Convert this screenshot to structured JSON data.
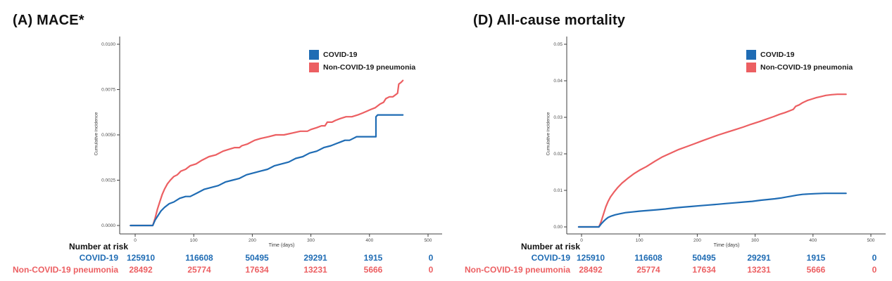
{
  "colors": {
    "covid": "#1f6cb4",
    "noncovid": "#ec5f62",
    "axis": "#3f3f3f",
    "tick_text": "#4a4a4a"
  },
  "legend": {
    "items": [
      {
        "id": "covid",
        "label": "COVID-19"
      },
      {
        "id": "noncovid",
        "label": "Non-COVID-19 pneumonia"
      }
    ]
  },
  "chart_data": [
    {
      "type": "line",
      "title": "(A) MACE*",
      "xlabel": "Time (days)",
      "ylabel": "Cumulative incidence",
      "xlim": [
        -26,
        530
      ],
      "ylim": [
        0,
        0.0105
      ],
      "grid": false,
      "legend_position": "top-right",
      "xticks": {
        "values": [
          0,
          100,
          200,
          300,
          400,
          500
        ],
        "labels": [
          "0",
          "100",
          "200",
          "300",
          "400",
          "500"
        ]
      },
      "yticks": {
        "values": [
          0.01,
          0.0075,
          0.005,
          0.0025,
          0.0
        ],
        "labels": [
          "0.0100",
          "0.0075",
          "0.0050",
          "0.0025",
          "0.0000"
        ]
      },
      "series": [
        {
          "name": "Non-COVID-19 pneumonia",
          "color_id": "noncovid",
          "points": [
            [
              -8,
              0
            ],
            [
              30,
              0
            ],
            [
              34,
              0.0004
            ],
            [
              38,
              0.0009
            ],
            [
              42,
              0.0013
            ],
            [
              46,
              0.0017
            ],
            [
              50,
              0.002
            ],
            [
              55,
              0.0023
            ],
            [
              60,
              0.0025
            ],
            [
              66,
              0.0027
            ],
            [
              72,
              0.0028
            ],
            [
              78,
              0.003
            ],
            [
              86,
              0.0031
            ],
            [
              94,
              0.0033
            ],
            [
              104,
              0.0034
            ],
            [
              114,
              0.0036
            ],
            [
              126,
              0.0038
            ],
            [
              138,
              0.0039
            ],
            [
              150,
              0.0041
            ],
            [
              160,
              0.0042
            ],
            [
              170,
              0.0043
            ],
            [
              178,
              0.0043
            ],
            [
              182,
              0.0044
            ],
            [
              192,
              0.0045
            ],
            [
              204,
              0.0047
            ],
            [
              214,
              0.0048
            ],
            [
              228,
              0.0049
            ],
            [
              240,
              0.005
            ],
            [
              254,
              0.005
            ],
            [
              268,
              0.0051
            ],
            [
              282,
              0.0052
            ],
            [
              294,
              0.0052
            ],
            [
              300,
              0.0053
            ],
            [
              310,
              0.0054
            ],
            [
              318,
              0.0055
            ],
            [
              324,
              0.0055
            ],
            [
              328,
              0.0057
            ],
            [
              336,
              0.0057
            ],
            [
              342,
              0.0058
            ],
            [
              350,
              0.0059
            ],
            [
              360,
              0.006
            ],
            [
              370,
              0.006
            ],
            [
              380,
              0.0061
            ],
            [
              388,
              0.0062
            ],
            [
              395,
              0.0063
            ],
            [
              402,
              0.0064
            ],
            [
              410,
              0.0065
            ],
            [
              418,
              0.0067
            ],
            [
              424,
              0.0068
            ],
            [
              428,
              0.007
            ],
            [
              434,
              0.0071
            ],
            [
              440,
              0.0071
            ],
            [
              444,
              0.0072
            ],
            [
              448,
              0.0073
            ],
            [
              450,
              0.0078
            ],
            [
              454,
              0.0079
            ],
            [
              457,
              0.008
            ]
          ]
        },
        {
          "name": "COVID-19",
          "color_id": "covid",
          "points": [
            [
              -8,
              0
            ],
            [
              30,
              0
            ],
            [
              34,
              0.0003
            ],
            [
              38,
              0.0005
            ],
            [
              44,
              0.0008
            ],
            [
              50,
              0.001
            ],
            [
              58,
              0.0012
            ],
            [
              66,
              0.0013
            ],
            [
              76,
              0.0015
            ],
            [
              86,
              0.0016
            ],
            [
              94,
              0.0016
            ],
            [
              106,
              0.0018
            ],
            [
              118,
              0.002
            ],
            [
              130,
              0.0021
            ],
            [
              142,
              0.0022
            ],
            [
              154,
              0.0024
            ],
            [
              166,
              0.0025
            ],
            [
              178,
              0.0026
            ],
            [
              190,
              0.0028
            ],
            [
              202,
              0.0029
            ],
            [
              214,
              0.003
            ],
            [
              226,
              0.0031
            ],
            [
              238,
              0.0033
            ],
            [
              250,
              0.0034
            ],
            [
              262,
              0.0035
            ],
            [
              274,
              0.0037
            ],
            [
              286,
              0.0038
            ],
            [
              298,
              0.004
            ],
            [
              310,
              0.0041
            ],
            [
              322,
              0.0043
            ],
            [
              334,
              0.0044
            ],
            [
              342,
              0.0045
            ],
            [
              350,
              0.0046
            ],
            [
              358,
              0.0047
            ],
            [
              366,
              0.0047
            ],
            [
              372,
              0.0048
            ],
            [
              378,
              0.0049
            ],
            [
              386,
              0.0049
            ],
            [
              411,
              0.0049
            ],
            [
              411,
              0.006
            ],
            [
              414,
              0.0061
            ],
            [
              457,
              0.0061
            ]
          ]
        }
      ]
    },
    {
      "type": "line",
      "title": "(D) All-cause mortality",
      "xlabel": "Time (days)",
      "ylabel": "Cumulative incidence",
      "xlim": [
        -26,
        530
      ],
      "ylim": [
        0,
        0.052
      ],
      "grid": false,
      "legend_position": "top-right",
      "xticks": {
        "values": [
          0,
          100,
          200,
          300,
          400,
          500
        ],
        "labels": [
          "0",
          "100",
          "200",
          "300",
          "400",
          "500"
        ]
      },
      "yticks": {
        "values": [
          0.05,
          0.04,
          0.03,
          0.02,
          0.01,
          0.0
        ],
        "labels": [
          "0.05",
          "0.04",
          "0.03",
          "0.02",
          "0.01",
          "0.00"
        ]
      },
      "series": [
        {
          "name": "Non-COVID-19 pneumonia",
          "color_id": "noncovid",
          "points": [
            [
              -5,
              0
            ],
            [
              30,
              0
            ],
            [
              34,
              0.0015
            ],
            [
              38,
              0.0035
            ],
            [
              42,
              0.0055
            ],
            [
              46,
              0.007
            ],
            [
              50,
              0.0082
            ],
            [
              56,
              0.0095
            ],
            [
              62,
              0.0107
            ],
            [
              70,
              0.012
            ],
            [
              80,
              0.0133
            ],
            [
              90,
              0.0145
            ],
            [
              100,
              0.0155
            ],
            [
              112,
              0.0165
            ],
            [
              127,
              0.018
            ],
            [
              140,
              0.0192
            ],
            [
              154,
              0.0202
            ],
            [
              168,
              0.0212
            ],
            [
              182,
              0.022
            ],
            [
              196,
              0.0228
            ],
            [
              209,
              0.0236
            ],
            [
              223,
              0.0244
            ],
            [
              237,
              0.0252
            ],
            [
              251,
              0.0259
            ],
            [
              265,
              0.0266
            ],
            [
              279,
              0.0273
            ],
            [
              293,
              0.0281
            ],
            [
              307,
              0.0288
            ],
            [
              321,
              0.0296
            ],
            [
              332,
              0.0302
            ],
            [
              342,
              0.0308
            ],
            [
              352,
              0.0313
            ],
            [
              360,
              0.0318
            ],
            [
              366,
              0.0322
            ],
            [
              370,
              0.033
            ],
            [
              376,
              0.0334
            ],
            [
              382,
              0.034
            ],
            [
              390,
              0.0346
            ],
            [
              398,
              0.035
            ],
            [
              406,
              0.0354
            ],
            [
              414,
              0.0357
            ],
            [
              422,
              0.036
            ],
            [
              432,
              0.0362
            ],
            [
              442,
              0.0363
            ],
            [
              457,
              0.0363
            ]
          ]
        },
        {
          "name": "COVID-19",
          "color_id": "covid",
          "points": [
            [
              -5,
              0
            ],
            [
              30,
              0
            ],
            [
              34,
              0.0008
            ],
            [
              38,
              0.0015
            ],
            [
              42,
              0.0021
            ],
            [
              46,
              0.0026
            ],
            [
              52,
              0.003
            ],
            [
              58,
              0.0033
            ],
            [
              66,
              0.0036
            ],
            [
              76,
              0.0039
            ],
            [
              88,
              0.0041
            ],
            [
              100,
              0.0043
            ],
            [
              115,
              0.0045
            ],
            [
              130,
              0.0047
            ],
            [
              145,
              0.0049
            ],
            [
              160,
              0.0052
            ],
            [
              175,
              0.0054
            ],
            [
              190,
              0.0056
            ],
            [
              205,
              0.0058
            ],
            [
              220,
              0.006
            ],
            [
              235,
              0.0062
            ],
            [
              250,
              0.0064
            ],
            [
              265,
              0.0066
            ],
            [
              280,
              0.0068
            ],
            [
              295,
              0.007
            ],
            [
              310,
              0.0073
            ],
            [
              322,
              0.0075
            ],
            [
              334,
              0.0077
            ],
            [
              344,
              0.0079
            ],
            [
              354,
              0.0082
            ],
            [
              362,
              0.0084
            ],
            [
              372,
              0.0087
            ],
            [
              382,
              0.0089
            ],
            [
              392,
              0.009
            ],
            [
              404,
              0.0091
            ],
            [
              420,
              0.0092
            ],
            [
              457,
              0.0092
            ]
          ]
        }
      ]
    }
  ],
  "risk_table": {
    "header": "Number at risk",
    "columns_days": [
      0,
      100,
      200,
      300,
      400,
      500
    ],
    "rows": [
      {
        "label": "COVID-19",
        "color_id": "covid",
        "values": [
          "125910",
          "116608",
          "50495",
          "29291",
          "1915",
          "0"
        ]
      },
      {
        "label": "Non-COVID-19 pneumonia",
        "color_id": "noncovid",
        "values": [
          "28492",
          "25774",
          "17634",
          "13231",
          "5666",
          "0"
        ]
      }
    ]
  }
}
